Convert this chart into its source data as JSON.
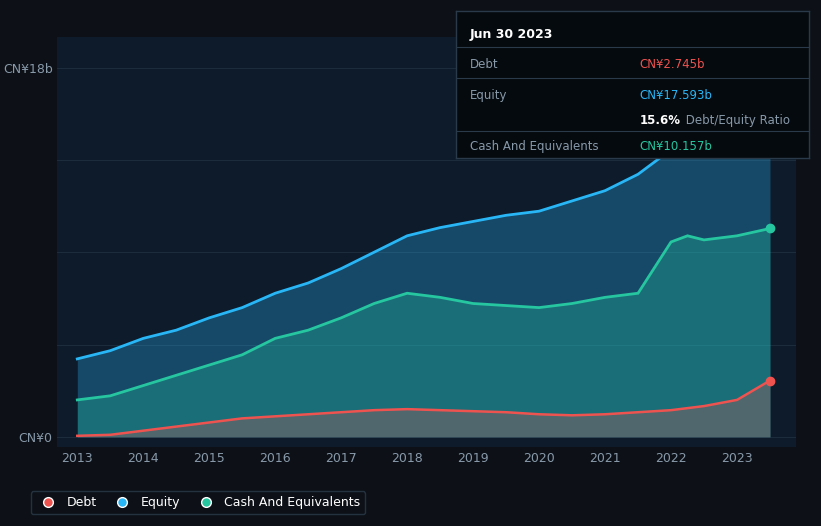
{
  "background_color": "#0d1117",
  "plot_bg_color": "#0d1b2a",
  "title": "Jun 30 2023",
  "ylabel_top": "CN¥18b",
  "ylabel_bottom": "CN¥0",
  "years": [
    2013,
    2013.5,
    2014,
    2014.5,
    2015,
    2015.5,
    2016,
    2016.5,
    2017,
    2017.5,
    2018,
    2018.5,
    2019,
    2019.5,
    2020,
    2020.5,
    2021,
    2021.5,
    2022,
    2022.25,
    2022.5,
    2023,
    2023.5
  ],
  "equity": [
    3.8,
    4.2,
    4.8,
    5.2,
    5.8,
    6.3,
    7.0,
    7.5,
    8.2,
    9.0,
    9.8,
    10.2,
    10.5,
    10.8,
    11.0,
    11.5,
    12.0,
    12.8,
    14.0,
    16.5,
    16.8,
    17.0,
    17.593
  ],
  "cash": [
    1.8,
    2.0,
    2.5,
    3.0,
    3.5,
    4.0,
    4.8,
    5.2,
    5.8,
    6.5,
    7.0,
    6.8,
    6.5,
    6.4,
    6.3,
    6.5,
    6.8,
    7.0,
    9.5,
    9.8,
    9.6,
    9.8,
    10.157
  ],
  "debt": [
    0.05,
    0.1,
    0.3,
    0.5,
    0.7,
    0.9,
    1.0,
    1.1,
    1.2,
    1.3,
    1.35,
    1.3,
    1.25,
    1.2,
    1.1,
    1.05,
    1.1,
    1.2,
    1.3,
    1.4,
    1.5,
    1.8,
    2.745
  ],
  "equity_color": "#29b6f6",
  "cash_color": "#26c6a0",
  "debt_color": "#ef5350",
  "grid_color": "#1e2d3d",
  "tick_color": "#8899aa",
  "x_ticks": [
    2013,
    2014,
    2015,
    2016,
    2017,
    2018,
    2019,
    2020,
    2021,
    2022,
    2023
  ],
  "tooltip_bg": "#000000",
  "tooltip_border": "#2a3a4a",
  "tooltip_title": "Jun 30 2023",
  "tooltip_debt_label": "Debt",
  "tooltip_debt_value": "CN¥2.745b",
  "tooltip_equity_label": "Equity",
  "tooltip_equity_value": "CN¥17.593b",
  "tooltip_ratio_value": "15.6%",
  "tooltip_ratio_label": " Debt/Equity Ratio",
  "tooltip_cash_label": "Cash And Equivalents",
  "tooltip_cash_value": "CN¥10.157b",
  "legend_labels": [
    "Debt",
    "Equity",
    "Cash And Equivalents"
  ]
}
